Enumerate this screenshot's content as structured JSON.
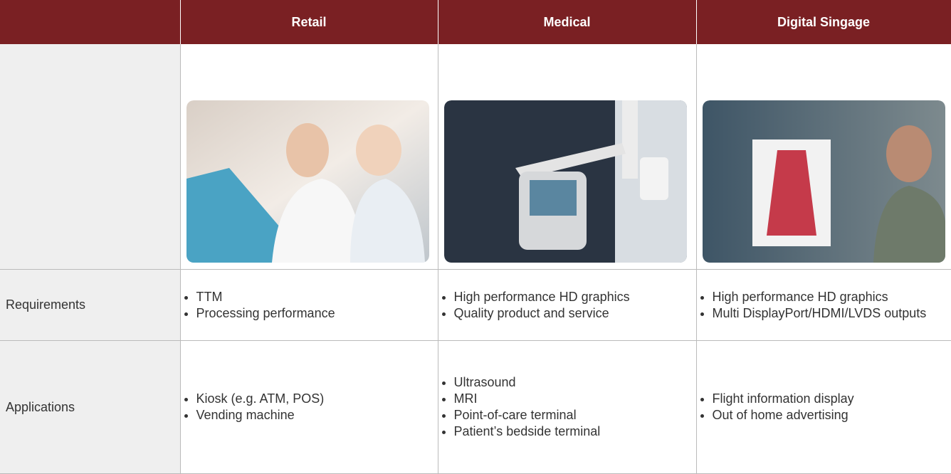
{
  "header": {
    "columns": [
      "Retail",
      "Medical",
      "Digital Singage"
    ]
  },
  "rows": [
    {
      "label": "Requirements",
      "cells": [
        [
          "TTM",
          "Processing performance"
        ],
        [
          "High performance HD graphics",
          "Quality product and service"
        ],
        [
          "High performance HD graphics",
          "Multi DisplayPort/HDMI/LVDS outputs"
        ]
      ]
    },
    {
      "label": "Applications",
      "cells": [
        [
          "Kiosk (e.g. ATM, POS)",
          "Vending machine"
        ],
        [
          "Ultrasound",
          "MRI",
          "Point-of-care terminal",
          "Patient’s bedside terminal"
        ],
        [
          "Flight information display",
          "Out of home advertising"
        ]
      ]
    }
  ]
}
